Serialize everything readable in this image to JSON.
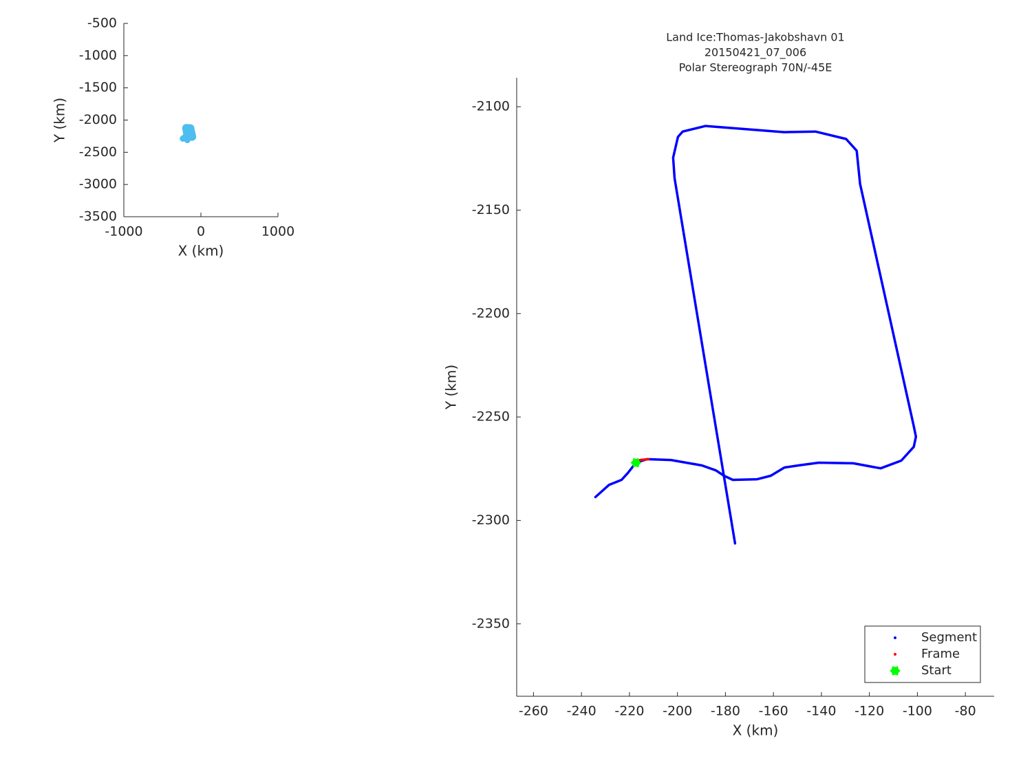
{
  "chart_data": [
    {
      "type": "line",
      "xlabel": "X (km)",
      "ylabel": "Y (km)",
      "xlim": [
        -1000,
        1000
      ],
      "ylim": [
        -3500,
        -500
      ],
      "xticks": [
        -1000,
        0,
        1000
      ],
      "yticks": [
        -3500,
        -3000,
        -2500,
        -2000,
        -1500,
        -1000,
        -500
      ],
      "color": "#4dbeee",
      "x": [
        -234.2,
        -228.5,
        -223.3,
        -220.7,
        -217.3,
        -212.7,
        -202.7,
        -189.8,
        -184.0,
        -180.6,
        -176.9,
        -166.8,
        -161.1,
        -155.4,
        -149.6,
        -141.1,
        -126.7,
        -115.3,
        -106.7,
        -101.5,
        -100.6,
        -101.5,
        -123.9,
        -125.3,
        -129.7,
        -142.5,
        -155.4,
        -188.3,
        -197.8,
        -199.8,
        -201.8,
        -201.2,
        -176.0
      ],
      "values": [
        -2288.7,
        -2282.8,
        -2280.4,
        -2277.1,
        -2272.1,
        -2270.4,
        -2270.8,
        -2273.4,
        -2275.8,
        -2278.4,
        -2280.4,
        -2280.1,
        -2278.4,
        -2274.4,
        -2273.4,
        -2272.1,
        -2272.4,
        -2274.8,
        -2271.1,
        -2264.4,
        -2259.5,
        -2254.5,
        -2137.3,
        -2121.3,
        -2115.6,
        -2112.0,
        -2112.3,
        -2109.3,
        -2112.0,
        -2114.6,
        -2124.6,
        -2134.6,
        -2311.1
      ]
    },
    {
      "type": "line",
      "title": [
        "Land Ice:Thomas-Jakobshavn 01",
        "20150421_07_006",
        "Polar Stereograph 70N/-45E"
      ],
      "xlabel": "X (km)",
      "ylabel": "Y (km)",
      "xlim": [
        -267,
        -68
      ],
      "ylim": [
        -2385,
        -2086
      ],
      "xticks": [
        -260,
        -240,
        -220,
        -200,
        -180,
        -160,
        -140,
        -120,
        -100,
        -80
      ],
      "yticks": [
        -2350,
        -2300,
        -2250,
        -2200,
        -2150,
        -2100
      ],
      "legend": "southeast",
      "series": [
        {
          "name": "Segment",
          "color": "#0000ff",
          "x": [
            -234.2,
            -228.5,
            -223.3,
            -220.7,
            -217.3,
            -212.7,
            -202.7,
            -189.8,
            -184.0,
            -180.6,
            -176.9,
            -166.8,
            -161.1,
            -155.4,
            -149.6,
            -141.1,
            -126.7,
            -115.3,
            -106.7,
            -101.5,
            -100.6,
            -101.5,
            -123.9,
            -125.3,
            -129.7,
            -142.5,
            -155.4,
            -188.3,
            -197.8,
            -199.8,
            -201.8,
            -201.2,
            -176.0
          ],
          "values": [
            -2288.7,
            -2282.8,
            -2280.4,
            -2277.1,
            -2272.1,
            -2270.4,
            -2270.8,
            -2273.4,
            -2275.8,
            -2278.4,
            -2280.4,
            -2280.1,
            -2278.4,
            -2274.4,
            -2273.4,
            -2272.1,
            -2272.4,
            -2274.8,
            -2271.1,
            -2264.4,
            -2259.5,
            -2254.5,
            -2137.3,
            -2121.3,
            -2115.6,
            -2112.0,
            -2112.3,
            -2109.3,
            -2112.0,
            -2114.6,
            -2124.6,
            -2134.6,
            -2311.1
          ]
        },
        {
          "name": "Frame",
          "color": "#ff0000",
          "x": [
            -215.6,
            -212.1
          ],
          "values": [
            -2270.8,
            -2270.4
          ]
        },
        {
          "name": "Start",
          "color": "#00ff00",
          "x": [
            -217.3
          ],
          "values": [
            -2272.1
          ]
        }
      ]
    }
  ]
}
